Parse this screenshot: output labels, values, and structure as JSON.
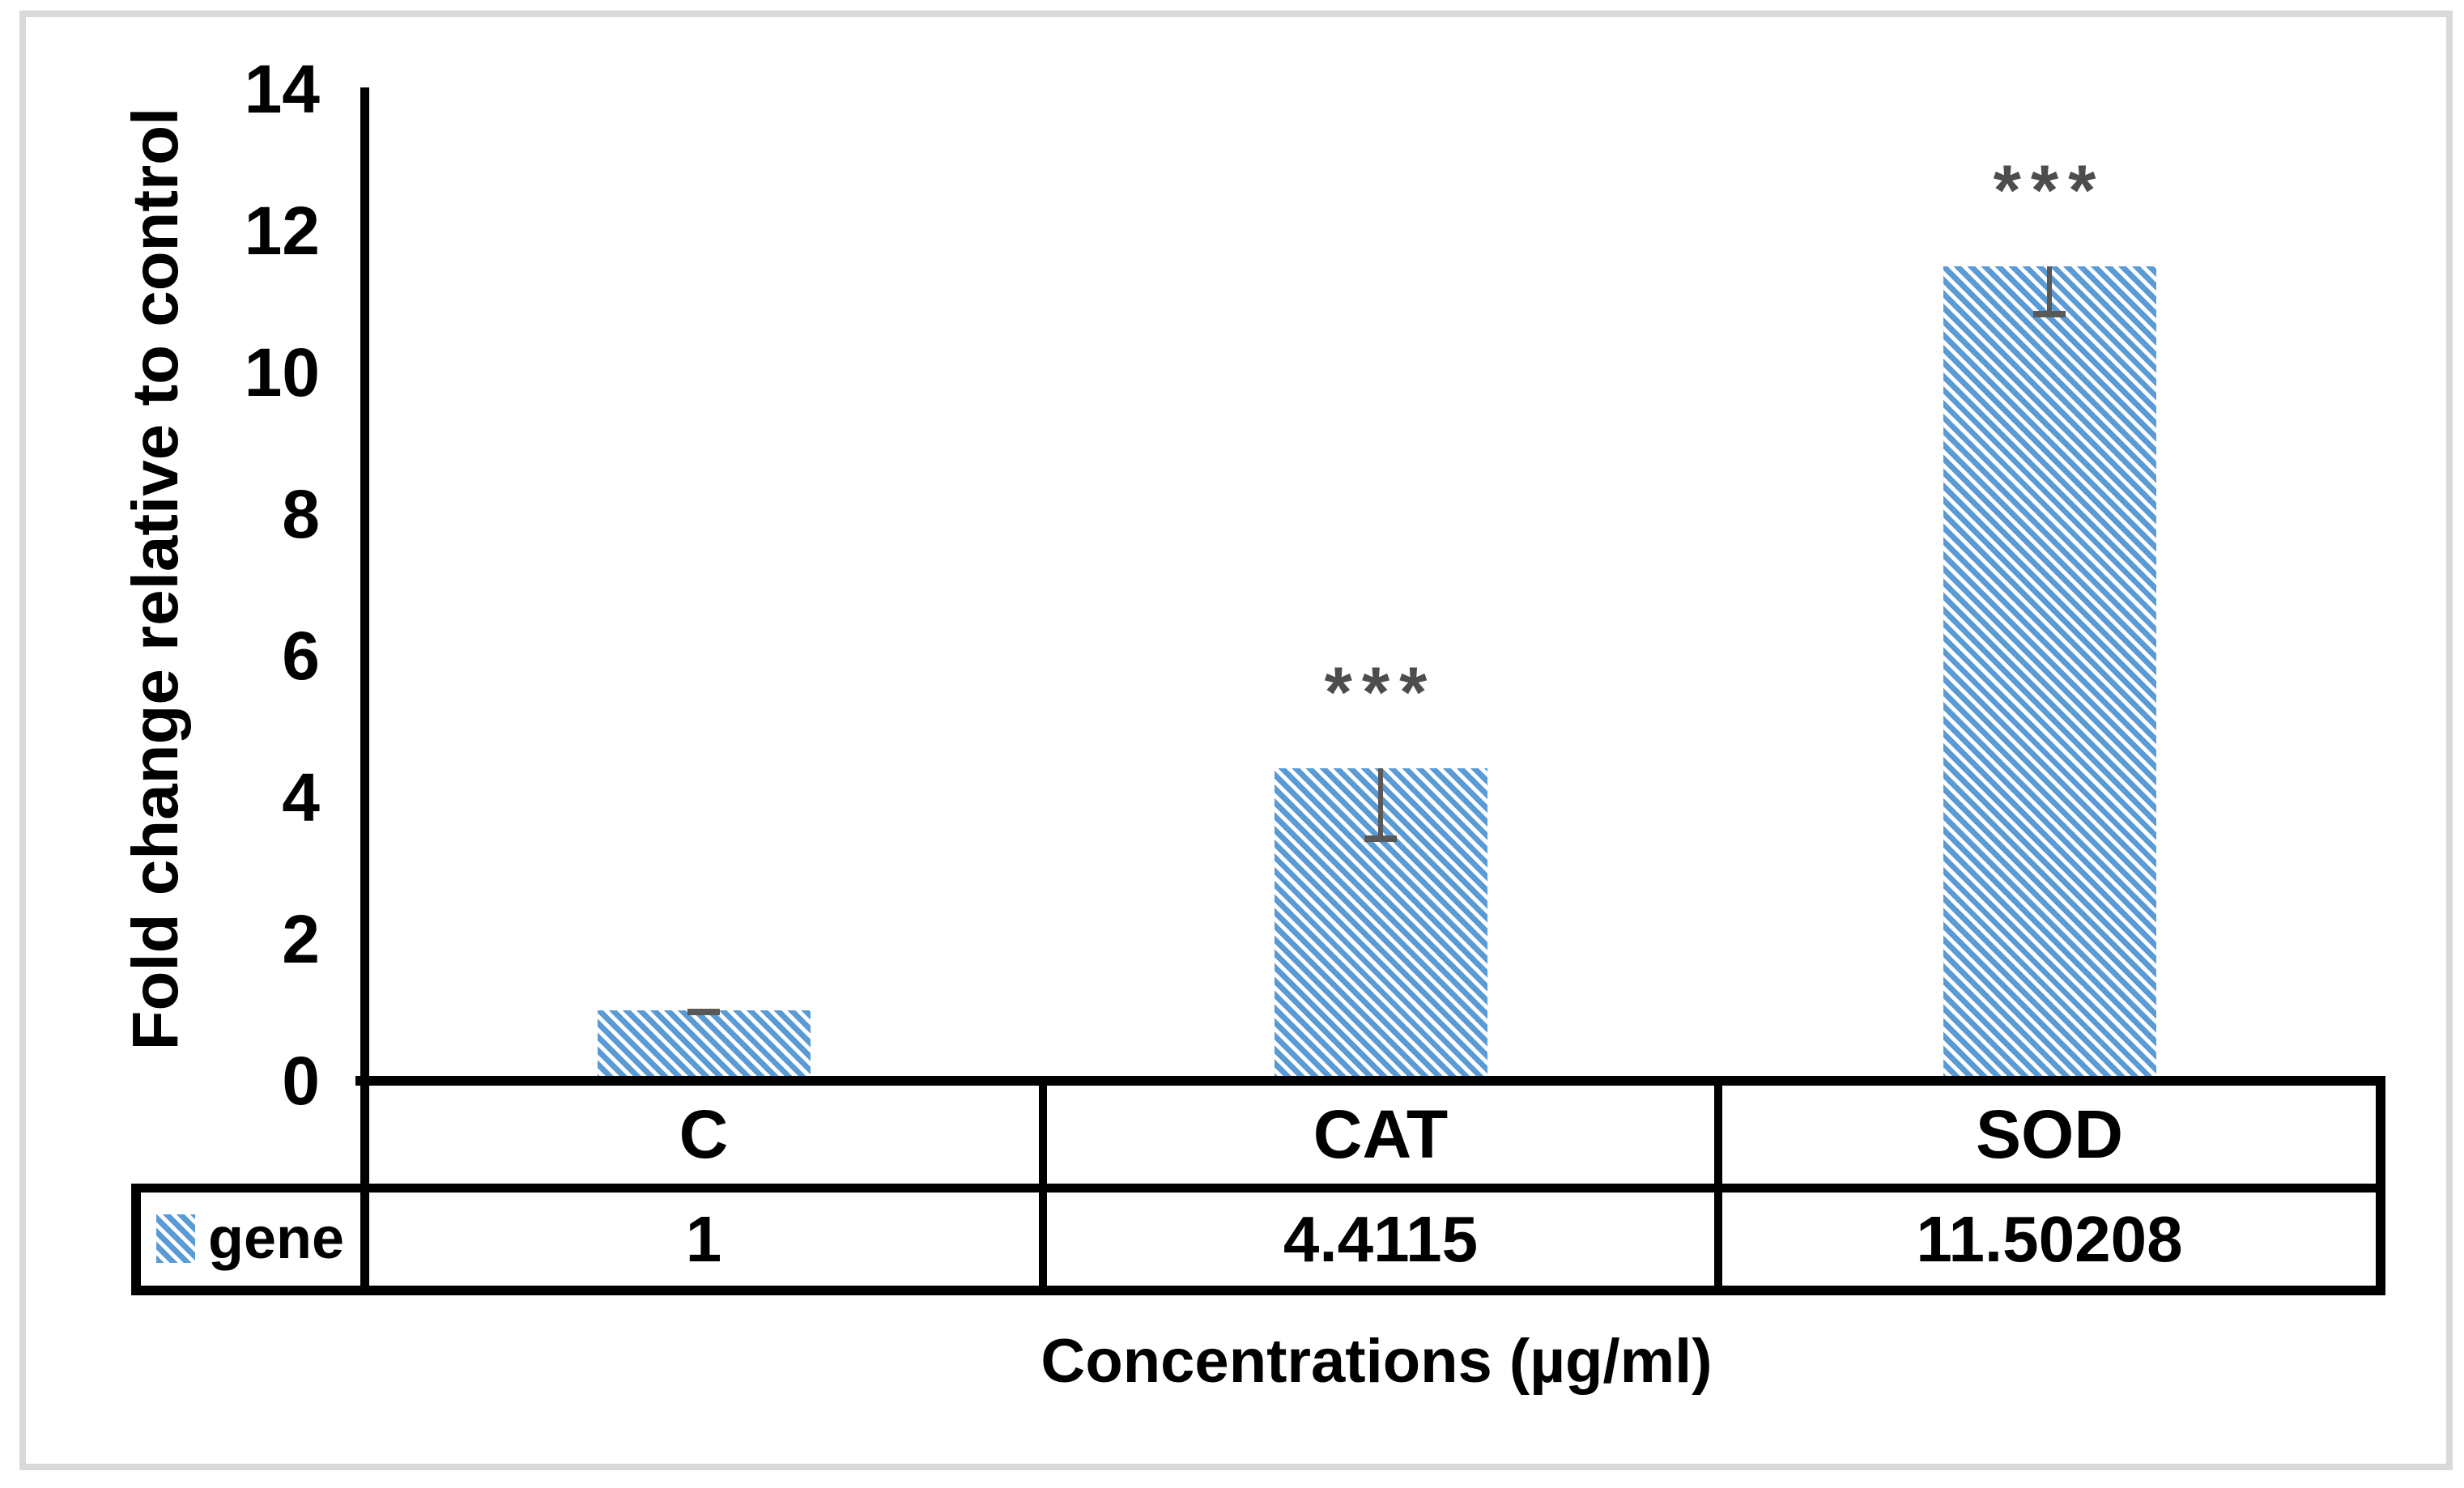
{
  "chart_data": {
    "type": "bar",
    "title": "",
    "categories": [
      "C",
      "CAT",
      "SOD"
    ],
    "series": [
      {
        "name": "gene",
        "values": [
          1,
          4.4115,
          11.50208
        ],
        "display_values": [
          "1",
          "4.4115",
          "11.50208"
        ],
        "error_minus": [
          0.03,
          1.0,
          0.68
        ],
        "significance": [
          "",
          "***",
          "***"
        ]
      }
    ],
    "xlabel": "Concentrations (µg/ml)",
    "ylabel": "Fold change relative to control",
    "ylim": [
      0,
      14
    ],
    "y_ticks": [
      0,
      2,
      4,
      6,
      8,
      10,
      12,
      14
    ],
    "grid": false,
    "legend_position": "table-left",
    "bar_pattern": "diagonal-stripes",
    "colors": {
      "bar_stripe": "#5b9bd5",
      "bar_background": "#ffffff",
      "error_bar": "#595959",
      "significance_marker": "#4d4d4d",
      "axis_and_table_border": "#000000",
      "figure_frame_border": "#d9d9d9"
    }
  }
}
